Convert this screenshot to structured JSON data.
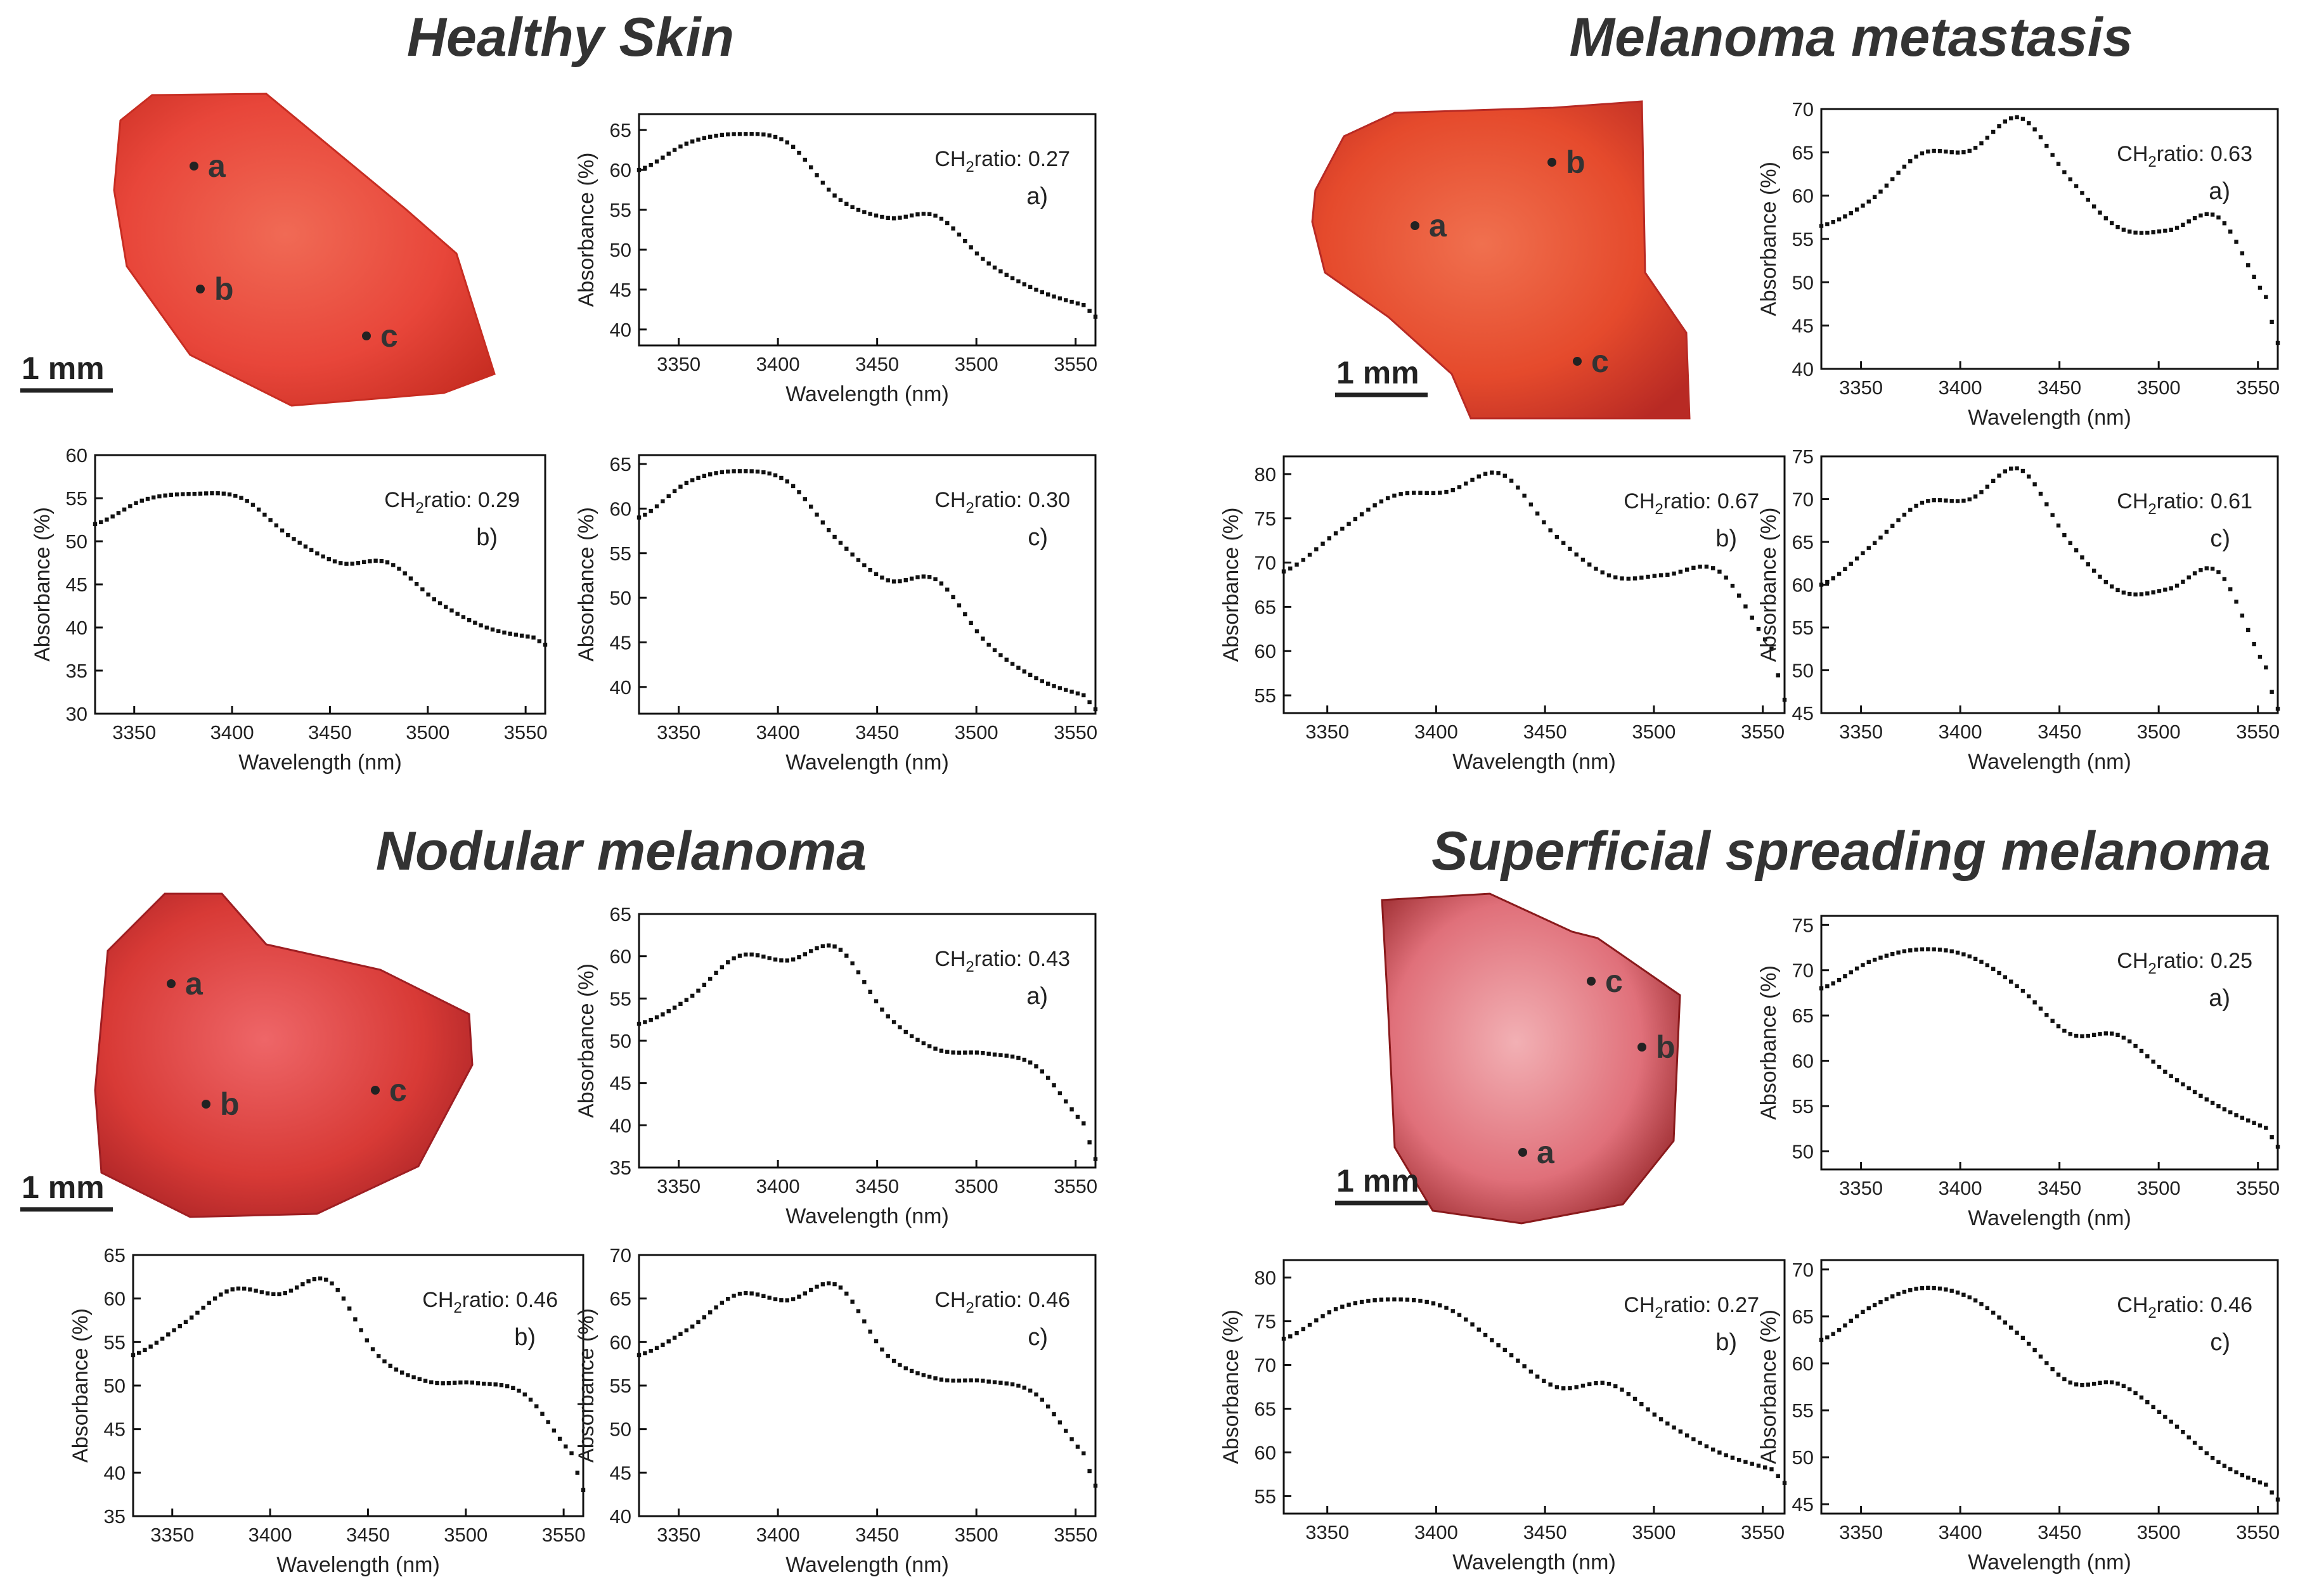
{
  "figure": {
    "sections": [
      {
        "title": "Healthy Skin",
        "scale_bar": "1 mm",
        "photo_points": [
          "a",
          "b",
          "c"
        ],
        "photo_colors": {
          "base": "#e8463a",
          "dark": "#c72d22",
          "light": "#f06a55"
        },
        "charts": [
          {
            "panel": "a)",
            "ratio": "0.27",
            "ylim": [
              38,
              67
            ],
            "yticks": [
              40,
              45,
              50,
              55,
              60,
              65
            ],
            "y": [
              60,
              63.4,
              64.5,
              63.4,
              56.5,
              54,
              54.2,
              48.5,
              45,
              43,
              41.6
            ]
          },
          {
            "panel": "b)",
            "ratio": "0.29",
            "ylim": [
              30,
              60
            ],
            "yticks": [
              30,
              35,
              40,
              45,
              50,
              55,
              60
            ],
            "y": [
              52,
              54.8,
              55.5,
              55,
              50.5,
              47.5,
              47.5,
              43,
              40,
              38.8,
              38
            ]
          },
          {
            "panel": "c)",
            "ratio": "0.30",
            "ylim": [
              37,
              66
            ],
            "yticks": [
              40,
              45,
              50,
              55,
              60,
              65
            ],
            "y": [
              59,
              63,
              64.2,
              63,
              56.5,
              52,
              52,
              45,
              41,
              39,
              37.5
            ]
          }
        ]
      },
      {
        "title": "Melanoma metastasis",
        "scale_bar": "1 mm",
        "photo_points": [
          "a",
          "b",
          "c"
        ],
        "photo_colors": {
          "base": "#e54a2c",
          "dark": "#b82a24",
          "light": "#f0704f"
        },
        "charts": [
          {
            "panel": "a)",
            "ratio": "0.63",
            "ylim": [
              40,
              70
            ],
            "yticks": [
              40,
              45,
              50,
              55,
              60,
              65,
              70
            ],
            "y": [
              56.5,
              59.5,
              64.8,
              65.2,
              69,
              62,
              56.3,
              56,
              57.5,
              48,
              43
            ]
          },
          {
            "panel": "b)",
            "ratio": "0.67",
            "ylim": [
              53,
              82
            ],
            "yticks": [
              55,
              60,
              65,
              70,
              75,
              80
            ],
            "y": [
              69,
              73.5,
              77.5,
              78,
              80,
              73,
              68.5,
              68.6,
              69,
              60,
              54.5
            ]
          },
          {
            "panel": "c)",
            "ratio": "0.61",
            "ylim": [
              45,
              75
            ],
            "yticks": [
              45,
              50,
              55,
              60,
              65,
              70,
              75
            ],
            "y": [
              60,
              64.5,
              69.5,
              70,
              73.5,
              65,
              59.3,
              59.5,
              61.5,
              50,
              45.5
            ]
          }
        ]
      },
      {
        "title": "Nodular melanoma",
        "scale_bar": "1 mm",
        "photo_points": [
          "a",
          "b",
          "c"
        ],
        "photo_colors": {
          "base": "#d83a36",
          "dark": "#9e1e22",
          "light": "#ee6668"
        },
        "charts": [
          {
            "panel": "a)",
            "ratio": "0.43",
            "ylim": [
              35,
              65
            ],
            "yticks": [
              35,
              40,
              45,
              50,
              55,
              60,
              65
            ],
            "y": [
              52,
              55,
              60,
              59.5,
              61,
              53,
              49,
              48.5,
              47,
              40,
              36
            ]
          },
          {
            "panel": "b)",
            "ratio": "0.46",
            "ylim": [
              35,
              65
            ],
            "yticks": [
              35,
              40,
              45,
              50,
              55,
              60,
              65
            ],
            "y": [
              53.5,
              57,
              61,
              60.5,
              62,
              53.5,
              50.5,
              50.3,
              49,
              42,
              38
            ]
          },
          {
            "panel": "c)",
            "ratio": "0.46",
            "ylim": [
              40,
              70
            ],
            "yticks": [
              40,
              45,
              50,
              55,
              60,
              65,
              70
            ],
            "y": [
              58.5,
              61.5,
              65.5,
              64.8,
              66.5,
              58.5,
              55.8,
              55.5,
              54,
              47,
              43.5
            ]
          }
        ]
      },
      {
        "title": "Superficial spreading melanoma",
        "scale_bar": "1 mm",
        "photo_points": [
          "a",
          "b",
          "c"
        ],
        "photo_colors": {
          "base": "#e0707a",
          "dark": "#8a1a1c",
          "light": "#f2b0b4"
        },
        "charts": [
          {
            "panel": "a)",
            "ratio": "0.25",
            "ylim": [
              48,
              76
            ],
            "yticks": [
              50,
              55,
              60,
              65,
              70,
              75
            ],
            "y": [
              68,
              71,
              72.3,
              71.5,
              68,
              63,
              62.8,
              58.5,
              55,
              52.5,
              50.5
            ]
          },
          {
            "panel": "b)",
            "ratio": "0.27",
            "ylim": [
              53,
              82
            ],
            "yticks": [
              55,
              60,
              65,
              70,
              75,
              80
            ],
            "y": [
              73,
              76.5,
              77.5,
              76.5,
              72,
              67.5,
              67.8,
              63.5,
              60,
              58,
              56.5
            ]
          },
          {
            "panel": "c)",
            "ratio": "0.46",
            "ylim": [
              44,
              71
            ],
            "yticks": [
              45,
              50,
              55,
              60,
              65,
              70
            ],
            "y": [
              62.5,
              66,
              68,
              67,
              63,
              58,
              57.8,
              54,
              49.5,
              47,
              45.5
            ]
          }
        ]
      }
    ]
  },
  "chart_data": {
    "type": "scatter",
    "x": [
      3330,
      3355,
      3380,
      3405,
      3430,
      3455,
      3480,
      3505,
      3530,
      3555,
      3560
    ],
    "xlim": [
      3330,
      3560
    ],
    "xticks": [
      3350,
      3400,
      3450,
      3500,
      3550
    ],
    "xlabel": "Wavelength (nm)",
    "ylabel": "Absorbance (%)",
    "ratio_prefix": "CH",
    "ratio_subscript": "2",
    "ratio_suffix": "ratio: ",
    "note": "Each section has three sub-charts (a, b, c); y values per sub-chart are listed under figure.sections[].charts[].y, aligned to x."
  }
}
